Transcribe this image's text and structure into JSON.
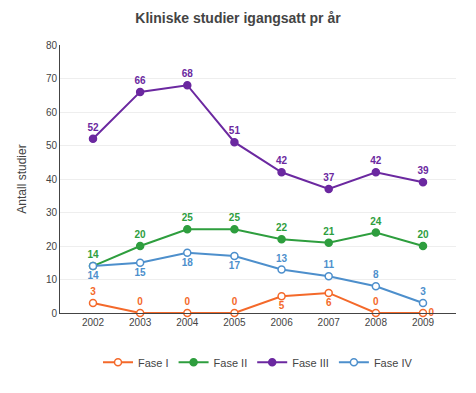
{
  "chart_data": {
    "type": "line",
    "title": "Kliniske studier igangsatt pr år",
    "ylabel": "Antall studier",
    "x": [
      2002,
      2003,
      2004,
      2005,
      2006,
      2007,
      2008,
      2009
    ],
    "xlim": [
      2001.3,
      2009.7
    ],
    "xticks": [
      2002,
      2003,
      2004,
      2005,
      2006,
      2007,
      2008,
      2009
    ],
    "ylim": [
      0,
      80
    ],
    "yticks": [
      0,
      10,
      20,
      30,
      40,
      50,
      60,
      70,
      80
    ],
    "grid": "y",
    "legend": "bottom",
    "data_labels": true,
    "series": [
      {
        "name": "Fase I",
        "color": "#f4692a",
        "marker": "open_circle",
        "values": [
          3,
          0,
          0,
          0,
          5,
          6,
          0,
          0
        ]
      },
      {
        "name": "Fase II",
        "color": "#2e9e3e",
        "marker": "circle",
        "values": [
          14,
          20,
          25,
          25,
          22,
          21,
          24,
          20
        ]
      },
      {
        "name": "Fase III",
        "color": "#6b28a0",
        "marker": "circle",
        "values": [
          52,
          66,
          68,
          51,
          42,
          37,
          42,
          39
        ]
      },
      {
        "name": "Fase IV",
        "color": "#4d8fcc",
        "marker": "open_circle",
        "values": [
          14,
          15,
          18,
          17,
          13,
          11,
          8,
          3
        ]
      }
    ]
  }
}
